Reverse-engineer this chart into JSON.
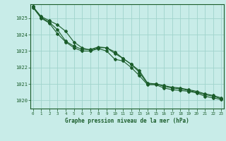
{
  "line1": [
    1025.7,
    1025.1,
    1024.85,
    1024.6,
    1024.2,
    1023.55,
    1023.2,
    1023.05,
    1023.2,
    1023.2,
    1022.95,
    1022.55,
    1022.2,
    1021.7,
    1021.0,
    1021.0,
    1020.85,
    1020.75,
    1020.7,
    1020.6,
    1020.5,
    1020.35,
    1020.25,
    1020.1
  ],
  "line2": [
    1025.7,
    1025.05,
    1024.75,
    1024.3,
    1023.6,
    1023.3,
    1023.1,
    1023.1,
    1023.25,
    1023.2,
    1022.85,
    1022.55,
    1022.2,
    1021.8,
    1021.05,
    1021.0,
    1020.9,
    1020.8,
    1020.75,
    1020.65,
    1020.55,
    1020.4,
    1020.3,
    1020.15
  ],
  "line3": [
    1025.65,
    1025.0,
    1024.7,
    1024.05,
    1023.55,
    1023.2,
    1023.0,
    1023.0,
    1023.15,
    1023.0,
    1022.5,
    1022.4,
    1022.0,
    1021.5,
    1020.95,
    1020.95,
    1020.75,
    1020.65,
    1020.6,
    1020.55,
    1020.45,
    1020.25,
    1020.15,
    1020.05
  ],
  "bg_color": "#c8ece8",
  "line_color": "#1a5c2a",
  "grid_color": "#a0d4cc",
  "xlabel": "Graphe pression niveau de la mer (hPa)",
  "yticks": [
    1020,
    1021,
    1022,
    1023,
    1024,
    1025
  ],
  "ylim": [
    1019.5,
    1025.85
  ],
  "xlim": [
    -0.3,
    23.3
  ],
  "xticks": [
    0,
    1,
    2,
    3,
    4,
    5,
    6,
    7,
    8,
    9,
    10,
    11,
    12,
    13,
    14,
    15,
    16,
    17,
    18,
    19,
    20,
    21,
    22,
    23
  ]
}
